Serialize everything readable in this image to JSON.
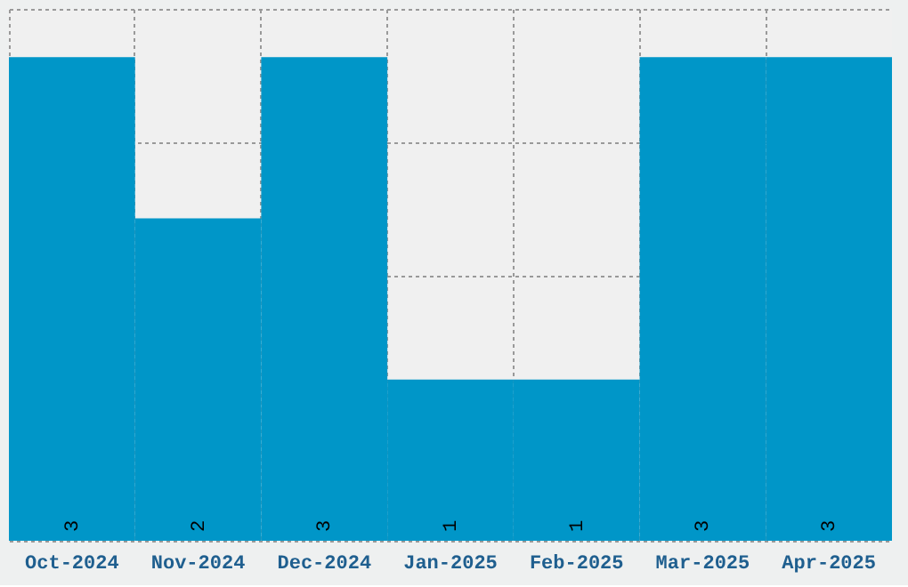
{
  "chart_data": {
    "type": "bar",
    "categories": [
      "Oct-2024",
      "Nov-2024",
      "Dec-2024",
      "Jan-2025",
      "Feb-2025",
      "Mar-2025",
      "Apr-2025"
    ],
    "values": [
      3,
      2,
      3,
      1,
      1,
      3,
      3
    ],
    "color": "#0096c8",
    "data_labels": true,
    "ylim": [
      0,
      3.3
    ],
    "yticks": [
      {
        "value": 0,
        "label": null
      },
      {
        "value": 0.825,
        "label": null
      },
      {
        "value": 1.65,
        "label": null
      },
      {
        "value": 2.475,
        "label": null
      },
      {
        "value": 3.3,
        "label": null
      }
    ],
    "grid": true,
    "tick_labels": "x"
  }
}
